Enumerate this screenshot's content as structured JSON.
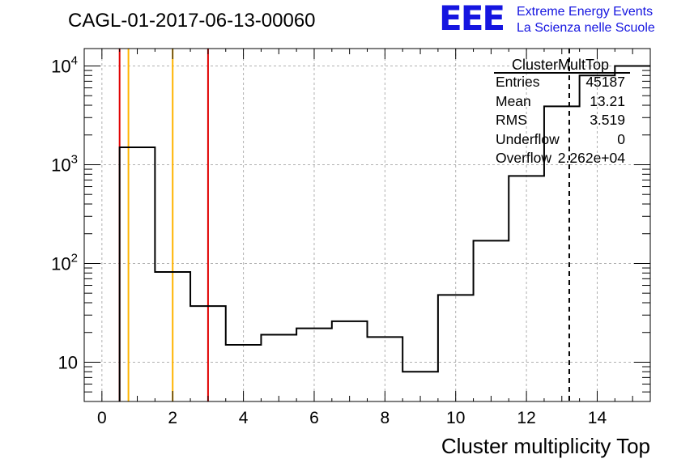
{
  "title": "CAGL-01-2017-06-13-00060",
  "logo": {
    "letters": "EEE",
    "line1": "Extreme Energy Events",
    "line2": "La Scienza nelle Scuole"
  },
  "stats": {
    "title": "ClusterMultTop",
    "rows": [
      {
        "label": "Entries",
        "value": "45187"
      },
      {
        "label": "Mean",
        "value": "13.21"
      },
      {
        "label": "RMS",
        "value": "3.519"
      },
      {
        "label": "Underflow",
        "value": "0"
      },
      {
        "label": "Overflow",
        "value": "2.262e+04"
      }
    ]
  },
  "chart_data": {
    "type": "histogram",
    "xlabel": "Cluster multiplicity Top",
    "ylabel": "",
    "xlim": [
      -0.5,
      15.5
    ],
    "ylim": [
      4,
      15000
    ],
    "yscale": "log",
    "grid": true,
    "x_ticks": [
      0,
      2,
      4,
      6,
      8,
      10,
      12,
      14
    ],
    "y_ticks": [
      {
        "value": 10,
        "label": "10",
        "exp": ""
      },
      {
        "value": 100,
        "label": "10",
        "exp": "2"
      },
      {
        "value": 1000,
        "label": "10",
        "exp": "3"
      },
      {
        "value": 10000,
        "label": "10",
        "exp": "4"
      }
    ],
    "bins": [
      {
        "x0": 0.5,
        "x1": 1.5,
        "count": 1500
      },
      {
        "x0": 1.5,
        "x1": 2.5,
        "count": 82
      },
      {
        "x0": 2.5,
        "x1": 3.5,
        "count": 37
      },
      {
        "x0": 3.5,
        "x1": 4.5,
        "count": 15
      },
      {
        "x0": 4.5,
        "x1": 5.5,
        "count": 19
      },
      {
        "x0": 5.5,
        "x1": 6.5,
        "count": 22
      },
      {
        "x0": 6.5,
        "x1": 7.5,
        "count": 26
      },
      {
        "x0": 7.5,
        "x1": 8.5,
        "count": 18
      },
      {
        "x0": 8.5,
        "x1": 9.5,
        "count": 8
      },
      {
        "x0": 9.5,
        "x1": 10.5,
        "count": 48
      },
      {
        "x0": 10.5,
        "x1": 11.5,
        "count": 170
      },
      {
        "x0": 11.5,
        "x1": 12.5,
        "count": 770
      },
      {
        "x0": 12.5,
        "x1": 13.5,
        "count": 3900
      },
      {
        "x0": 13.5,
        "x1": 14.5,
        "count": 8000
      },
      {
        "x0": 14.5,
        "x1": 15.5,
        "count": 10000
      }
    ],
    "vertical_lines": [
      {
        "x": 0.5,
        "color": "#e00000",
        "style": "solid"
      },
      {
        "x": 0.75,
        "color": "#ffb400",
        "style": "solid"
      },
      {
        "x": 2.0,
        "color": "#ffb400",
        "style": "solid"
      },
      {
        "x": 3.0,
        "color": "#e00000",
        "style": "solid"
      },
      {
        "x": 13.21,
        "color": "#000000",
        "style": "dashed"
      }
    ]
  }
}
